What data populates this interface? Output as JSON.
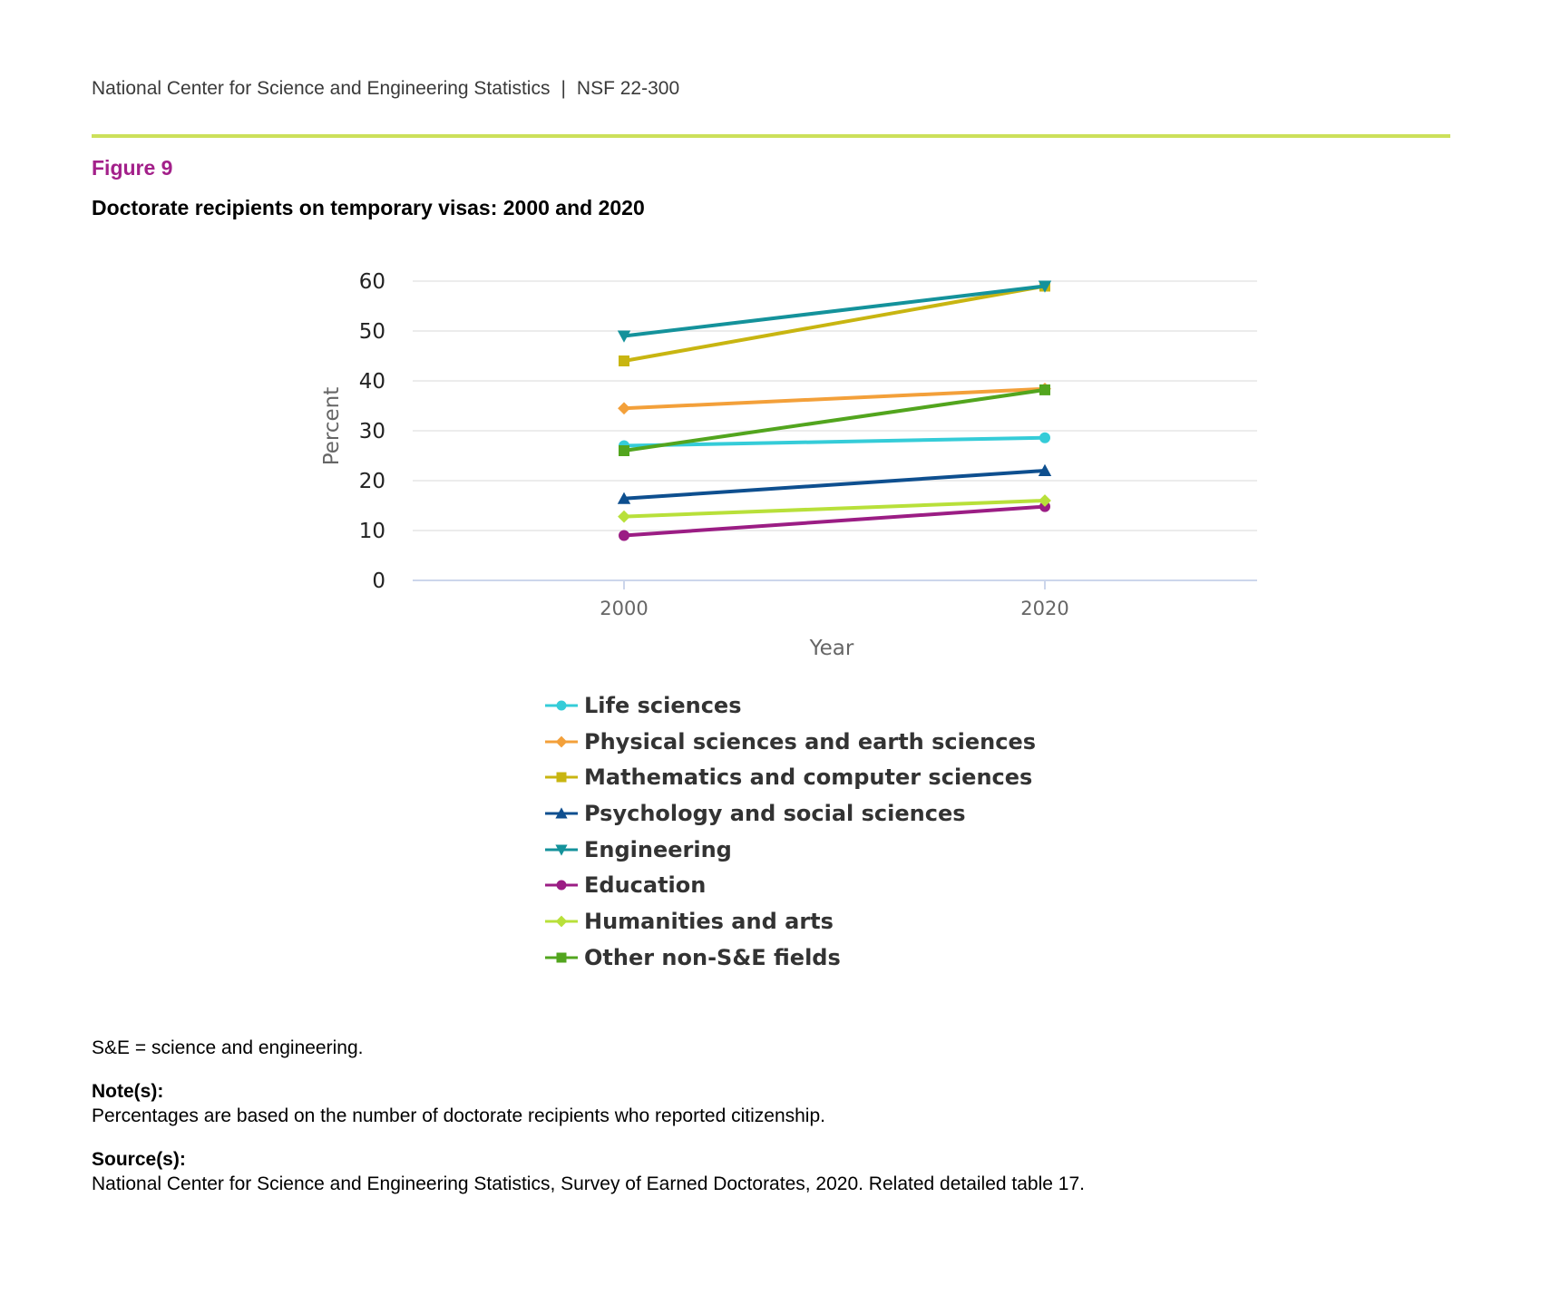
{
  "header": {
    "org": "National Center for Science and Engineering Statistics",
    "separator": "|",
    "report_id": "NSF 22-300"
  },
  "figure": {
    "label": "Figure 9",
    "title": "Doctorate recipients on temporary visas: 2000 and 2020"
  },
  "colors": {
    "header_rule": "#cce05a",
    "figure_label": "#a3208a",
    "gridline": "#e6e6e6",
    "axis_line": "#ccd6eb"
  },
  "chart_data": {
    "type": "line",
    "title": "Doctorate recipients on temporary visas: 2000 and 2020",
    "xlabel": "Year",
    "ylabel": "Percent",
    "x": [
      "2000",
      "2020"
    ],
    "ylim": [
      0,
      60
    ],
    "yticks": [
      0,
      10,
      20,
      30,
      40,
      50,
      60
    ],
    "grid": true,
    "legend_position": "bottom",
    "series": [
      {
        "name": "Life sciences",
        "values": [
          27,
          28.6
        ],
        "color": "#35ccd8",
        "marker": "circle"
      },
      {
        "name": "Physical sciences and earth sciences",
        "values": [
          34.5,
          38.4
        ],
        "color": "#f3a03a",
        "marker": "diamond"
      },
      {
        "name": "Mathematics and computer sciences",
        "values": [
          44,
          59
        ],
        "color": "#c8b511",
        "marker": "square"
      },
      {
        "name": "Psychology and social sciences",
        "values": [
          16.4,
          22
        ],
        "color": "#0e4f8f",
        "marker": "triangle-up"
      },
      {
        "name": "Engineering",
        "values": [
          49,
          59
        ],
        "color": "#14929b",
        "marker": "triangle-down"
      },
      {
        "name": "Education",
        "values": [
          9,
          14.8
        ],
        "color": "#9b1d84",
        "marker": "circle"
      },
      {
        "name": "Humanities and arts",
        "values": [
          12.8,
          16
        ],
        "color": "#b8e03a",
        "marker": "diamond"
      },
      {
        "name": "Other non-S&E fields",
        "values": [
          26,
          38.2
        ],
        "color": "#52a51e",
        "marker": "square"
      }
    ]
  },
  "footnotes": {
    "abbreviation": "S&E = science and engineering.",
    "notes_heading": "Note(s):",
    "notes_text": "Percentages are based on the number of doctorate recipients who reported citizenship.",
    "source_heading": "Source(s):",
    "source_text": "National Center for Science and Engineering Statistics, Survey of Earned Doctorates, 2020. Related detailed table 17."
  }
}
